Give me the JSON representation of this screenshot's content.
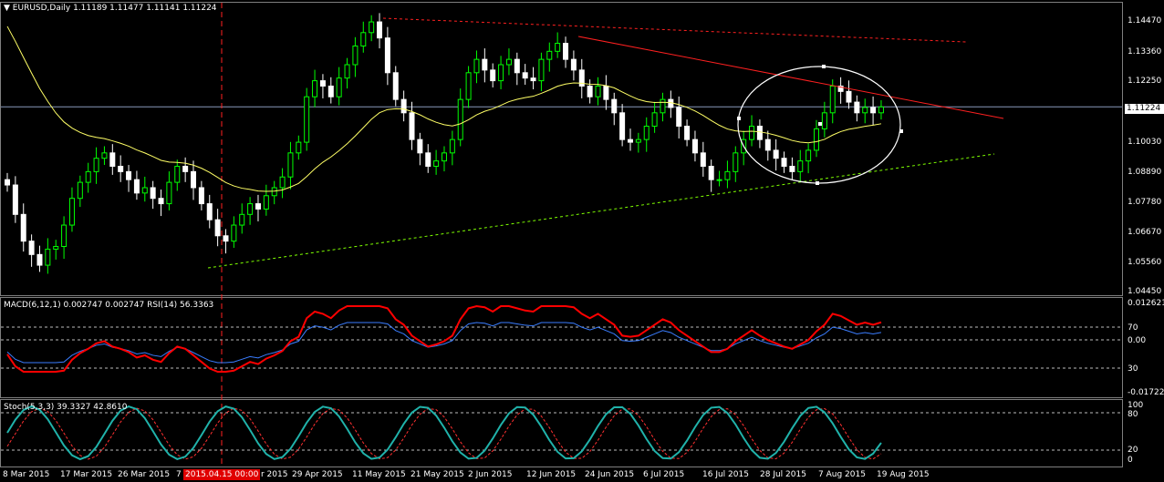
{
  "header": {
    "symbol": "EURUSD,Daily",
    "ohlc": "1.11189 1.11477 1.11141 1.11224",
    "menu_icon": "triangle-down-icon"
  },
  "price_axis": [
    "1.14470",
    "1.13360",
    "1.12250",
    "1.10030",
    "1.08890",
    "1.07780",
    "1.06670",
    "1.05560",
    "1.04450"
  ],
  "current_price": "1.11224",
  "macd": {
    "label": "MACD(6,12,1) 0.002747 0.002747  RSI(14) 56.3363",
    "axis": [
      "0.012621",
      "70",
      "0.00",
      "30",
      "-0.017225"
    ]
  },
  "stoch": {
    "label": "Stoch(5,3,3) 39.3327 42.8610",
    "axis": [
      "100",
      "80",
      "20",
      "0"
    ]
  },
  "time_axis": [
    "8 Mar 2015",
    "17 Mar 2015",
    "26 Mar 2015",
    "7",
    "2015.04.15 00:00",
    "r 2015",
    "29 Apr 2015",
    "11 May 2015",
    "21 May 2015",
    "2 Jun 2015",
    "12 Jun 2015",
    "24 Jun 2015",
    "6 Jul 2015",
    "16 Jul 2015",
    "28 Jul 2015",
    "7 Aug 2015",
    "19 Aug 2015"
  ],
  "colors": {
    "bull": "#00ff00",
    "bear": "#ffffff",
    "ma": "#ffff66",
    "resistance": "#ff2020",
    "support": "#7fff00",
    "macd_main": "#ff0000",
    "macd_signal": "#3a7dff",
    "stoch_main": "#20b2aa",
    "stoch_signal": "#ff3030"
  },
  "chart_data": {
    "type": "candlestick",
    "symbol": "EURUSD",
    "timeframe": "Daily",
    "ylim": [
      1.0445,
      1.1505
    ],
    "last_close": 1.11224,
    "closes": [
      1.083,
      1.072,
      1.062,
      1.057,
      1.053,
      1.059,
      1.06,
      1.068,
      1.078,
      1.084,
      1.088,
      1.093,
      1.095,
      1.09,
      1.088,
      1.085,
      1.08,
      1.082,
      1.078,
      1.076,
      1.084,
      1.09,
      1.088,
      1.082,
      1.076,
      1.07,
      1.064,
      1.062,
      1.068,
      1.072,
      1.076,
      1.074,
      1.079,
      1.082,
      1.086,
      1.095,
      1.099,
      1.116,
      1.122,
      1.12,
      1.116,
      1.123,
      1.128,
      1.135,
      1.14,
      1.144,
      1.138,
      1.125,
      1.115,
      1.11,
      1.1,
      1.095,
      1.09,
      1.092,
      1.095,
      1.1,
      1.115,
      1.125,
      1.13,
      1.126,
      1.122,
      1.128,
      1.13,
      1.125,
      1.123,
      1.122,
      1.13,
      1.133,
      1.136,
      1.13,
      1.126,
      1.12,
      1.116,
      1.12,
      1.115,
      1.11,
      1.1,
      1.099,
      1.1,
      1.105,
      1.11,
      1.115,
      1.112,
      1.105,
      1.1,
      1.095,
      1.09,
      1.085,
      1.085,
      1.088,
      1.095,
      1.1,
      1.105,
      1.1,
      1.096,
      1.093,
      1.09,
      1.088,
      1.092,
      1.096,
      1.104,
      1.11,
      1.12,
      1.118,
      1.114,
      1.11,
      1.112,
      1.11,
      1.1122
    ],
    "moving_average_start": 1.1475,
    "moving_average_end": 1.105,
    "annotations": [
      "resistance trendline",
      "support trendline",
      "ellipse"
    ]
  }
}
